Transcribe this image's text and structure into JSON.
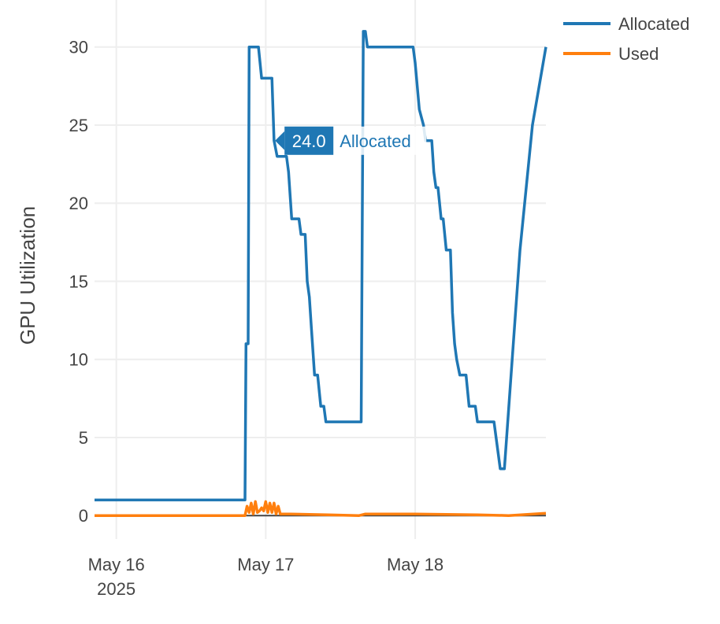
{
  "chart_data": {
    "type": "line",
    "xlabel": "",
    "ylabel": "GPU Utilization",
    "x_axis": {
      "type": "date",
      "range": [
        "2025-05-15T20:30",
        "2025-05-18T21:00"
      ],
      "ticks": [
        {
          "value": "2025-05-16T00:00",
          "label": "May 16",
          "sublabel": "2025"
        },
        {
          "value": "2025-05-17T00:00",
          "label": "May 17",
          "sublabel": ""
        },
        {
          "value": "2025-05-18T00:00",
          "label": "May 18",
          "sublabel": ""
        }
      ]
    },
    "y_axis": {
      "range": [
        -1.5,
        32
      ],
      "ticks": [
        0,
        5,
        10,
        15,
        20,
        25,
        30
      ]
    },
    "grid": true,
    "legend": {
      "placement": "top-right"
    },
    "series": [
      {
        "name": "Allocated",
        "color": "#1f77b4",
        "points": [
          [
            "2025-05-15T20:30",
            1
          ],
          [
            "2025-05-16T20:40",
            1
          ],
          [
            "2025-05-16T20:50",
            11
          ],
          [
            "2025-05-16T21:10",
            11
          ],
          [
            "2025-05-16T21:20",
            30
          ],
          [
            "2025-05-16T22:50",
            30
          ],
          [
            "2025-05-16T23:20",
            28
          ],
          [
            "2025-05-17T01:00",
            28
          ],
          [
            "2025-05-17T01:20",
            24
          ],
          [
            "2025-05-17T01:50",
            23
          ],
          [
            "2025-05-17T03:20",
            23
          ],
          [
            "2025-05-17T03:40",
            22
          ],
          [
            "2025-05-17T04:10",
            19
          ],
          [
            "2025-05-17T05:20",
            19
          ],
          [
            "2025-05-17T05:40",
            18
          ],
          [
            "2025-05-17T06:20",
            18
          ],
          [
            "2025-05-17T06:40",
            15
          ],
          [
            "2025-05-17T07:00",
            14
          ],
          [
            "2025-05-17T07:20",
            12
          ],
          [
            "2025-05-17T07:50",
            9
          ],
          [
            "2025-05-17T08:20",
            9
          ],
          [
            "2025-05-17T08:50",
            7
          ],
          [
            "2025-05-17T09:20",
            7
          ],
          [
            "2025-05-17T09:40",
            6
          ],
          [
            "2025-05-17T15:20",
            6
          ],
          [
            "2025-05-17T15:40",
            31
          ],
          [
            "2025-05-17T16:00",
            31
          ],
          [
            "2025-05-17T16:20",
            30
          ],
          [
            "2025-05-17T23:40",
            30
          ],
          [
            "2025-05-18T00:00",
            29
          ],
          [
            "2025-05-18T00:40",
            26
          ],
          [
            "2025-05-18T01:20",
            25
          ],
          [
            "2025-05-18T01:40",
            24
          ],
          [
            "2025-05-18T02:40",
            24
          ],
          [
            "2025-05-18T03:00",
            22
          ],
          [
            "2025-05-18T03:20",
            21
          ],
          [
            "2025-05-18T03:40",
            21
          ],
          [
            "2025-05-18T04:10",
            19
          ],
          [
            "2025-05-18T04:30",
            19
          ],
          [
            "2025-05-18T05:00",
            17
          ],
          [
            "2025-05-18T05:40",
            17
          ],
          [
            "2025-05-18T06:00",
            13
          ],
          [
            "2025-05-18T06:20",
            11
          ],
          [
            "2025-05-18T06:40",
            10
          ],
          [
            "2025-05-18T07:10",
            9
          ],
          [
            "2025-05-18T08:10",
            9
          ],
          [
            "2025-05-18T08:40",
            7
          ],
          [
            "2025-05-18T09:40",
            7
          ],
          [
            "2025-05-18T10:00",
            6
          ],
          [
            "2025-05-18T12:40",
            6
          ],
          [
            "2025-05-18T13:40",
            3
          ],
          [
            "2025-05-18T14:20",
            3
          ],
          [
            "2025-05-18T16:50",
            17
          ],
          [
            "2025-05-18T18:50",
            25
          ],
          [
            "2025-05-18T21:00",
            30
          ]
        ]
      },
      {
        "name": "Used",
        "color": "#ff7f0e",
        "points": [
          [
            "2025-05-15T20:30",
            0
          ],
          [
            "2025-05-16T20:40",
            0
          ],
          [
            "2025-05-16T21:00",
            0.6
          ],
          [
            "2025-05-16T21:20",
            0.2
          ],
          [
            "2025-05-16T21:40",
            0.8
          ],
          [
            "2025-05-16T22:00",
            0.1
          ],
          [
            "2025-05-16T22:20",
            0.9
          ],
          [
            "2025-05-16T22:40",
            0.2
          ],
          [
            "2025-05-16T23:00",
            0.3
          ],
          [
            "2025-05-16T23:20",
            0.5
          ],
          [
            "2025-05-16T23:40",
            0.3
          ],
          [
            "2025-05-17T00:00",
            0.9
          ],
          [
            "2025-05-17T00:20",
            0.2
          ],
          [
            "2025-05-17T00:40",
            0.8
          ],
          [
            "2025-05-17T01:00",
            0.2
          ],
          [
            "2025-05-17T01:20",
            0.8
          ],
          [
            "2025-05-17T01:40",
            0.1
          ],
          [
            "2025-05-17T02:00",
            0.6
          ],
          [
            "2025-05-17T02:20",
            0.1
          ],
          [
            "2025-05-17T04:00",
            0.1
          ],
          [
            "2025-05-17T10:00",
            0.05
          ],
          [
            "2025-05-17T15:00",
            0
          ],
          [
            "2025-05-17T16:00",
            0.1
          ],
          [
            "2025-05-18T00:00",
            0.1
          ],
          [
            "2025-05-18T10:00",
            0.05
          ],
          [
            "2025-05-18T15:00",
            0
          ],
          [
            "2025-05-18T21:00",
            0.15
          ]
        ]
      }
    ],
    "hover_label": {
      "series": "Allocated",
      "x": "2025-05-17T01:30",
      "value_text": "24.0",
      "name_text": "Allocated"
    }
  }
}
